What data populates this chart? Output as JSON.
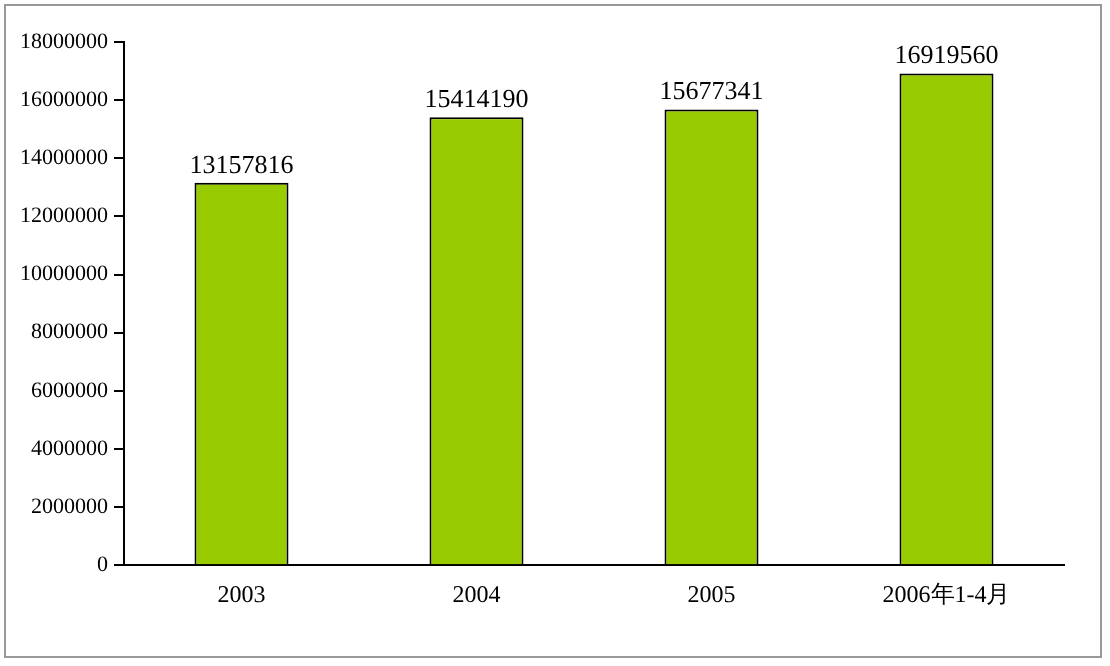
{
  "chart_data": {
    "type": "bar",
    "categories": [
      "2003",
      "2004",
      "2005",
      "2006年1-4月"
    ],
    "values": [
      13157816,
      15414190,
      15677341,
      16919560
    ],
    "color": "#99cc00",
    "ylim": [
      0,
      18000000
    ],
    "yticks": [
      0,
      2000000,
      4000000,
      6000000,
      8000000,
      10000000,
      12000000,
      14000000,
      16000000,
      18000000
    ],
    "grid": false,
    "legend": false,
    "data_labels": true
  }
}
